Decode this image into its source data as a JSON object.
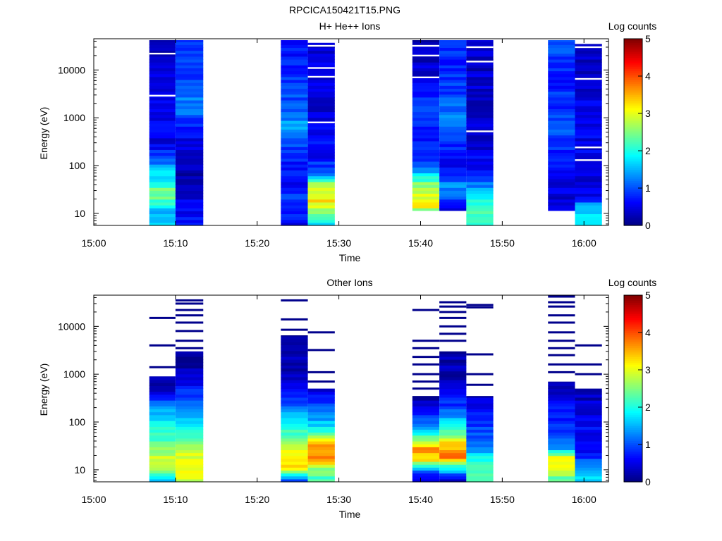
{
  "figure_title": "RPCICA150421T15.PNG",
  "colorbar_label": "Log counts",
  "colorbar_ticks": [
    "0",
    "1",
    "2",
    "3",
    "4",
    "5"
  ],
  "chart_data": [
    {
      "type": "heatmap",
      "title": "H+ He++ Ions",
      "xlabel": "Time",
      "ylabel": "Energy (eV)",
      "xticks": [
        "15:00",
        "15:10",
        "15:20",
        "15:30",
        "15:40",
        "15:50",
        "16:00"
      ],
      "yticks": [
        "10",
        "100",
        "1000",
        "10000"
      ],
      "y_scale": "log",
      "ylim": [
        5.6,
        45000
      ],
      "xlim": [
        "15:00",
        "16:03"
      ],
      "colorbar": {
        "label": "Log counts",
        "range": [
          0,
          5
        ],
        "colormap": "jet"
      },
      "columns": [
        {
          "start": "15:06.8",
          "end": "15:10.0",
          "emin": 5.6,
          "emax": 42000,
          "profile": [
            [
              6,
              1.7
            ],
            [
              11,
              1.3
            ],
            [
              18,
              2.2
            ],
            [
              28,
              2.5
            ],
            [
              45,
              2.0
            ],
            [
              80,
              1.6
            ],
            [
              150,
              1.0
            ],
            [
              300,
              0.5
            ],
            [
              1000,
              0.6
            ],
            [
              4000,
              0.5
            ],
            [
              15000,
              0.4
            ],
            [
              42000,
              0.3
            ]
          ],
          "gaps": [
            2900,
            22000
          ]
        },
        {
          "start": "15:10.0",
          "end": "15:13.4",
          "emin": 5.6,
          "emax": 42000,
          "profile": [
            [
              6,
              0.8
            ],
            [
              11,
              0.6
            ],
            [
              18,
              0.5
            ],
            [
              25,
              0.3
            ],
            [
              40,
              0.3
            ],
            [
              120,
              0.3
            ],
            [
              300,
              0.5
            ],
            [
              1000,
              0.9
            ],
            [
              1500,
              1.4
            ],
            [
              5000,
              0.9
            ],
            [
              42000,
              0.8
            ]
          ],
          "gaps": []
        },
        {
          "start": "15:22.9",
          "end": "15:26.2",
          "emin": 5.6,
          "emax": 42000,
          "profile": [
            [
              6,
              0.5
            ],
            [
              11,
              0.8
            ],
            [
              20,
              1.0
            ],
            [
              40,
              0.6
            ],
            [
              100,
              0.7
            ],
            [
              300,
              1.0
            ],
            [
              700,
              1.4
            ],
            [
              1500,
              1.1
            ],
            [
              5000,
              0.9
            ],
            [
              42000,
              0.7
            ]
          ],
          "gaps": []
        },
        {
          "start": "15:26.2",
          "end": "15:29.5",
          "emin": 5.6,
          "emax": 37000,
          "profile": [
            [
              6,
              1.8
            ],
            [
              11,
              2.6
            ],
            [
              18,
              3.2
            ],
            [
              30,
              3.0
            ],
            [
              45,
              2.6
            ],
            [
              70,
              1.2
            ],
            [
              150,
              0.6
            ],
            [
              500,
              0.6
            ],
            [
              2000,
              0.4
            ],
            [
              8000,
              0.5
            ],
            [
              37000,
              0.3
            ]
          ],
          "gaps": [
            800,
            7200,
            11000,
            32000
          ]
        },
        {
          "start": "15:39.0",
          "end": "15:42.3",
          "emin": 11.5,
          "emax": 42000,
          "profile": [
            [
              11,
              1.6
            ],
            [
              14,
              3.1
            ],
            [
              25,
              3.0
            ],
            [
              40,
              2.6
            ],
            [
              70,
              1.6
            ],
            [
              120,
              1.0
            ],
            [
              400,
              0.6
            ],
            [
              1500,
              1.2
            ],
            [
              3000,
              0.6
            ],
            [
              10000,
              0.4
            ],
            [
              42000,
              0.3
            ]
          ],
          "gaps": [
            7000,
            20000,
            32000
          ]
        },
        {
          "start": "15:42.3",
          "end": "15:45.6",
          "emin": 11.5,
          "emax": 42000,
          "profile": [
            [
              11,
              0.5
            ],
            [
              17,
              0.6
            ],
            [
              25,
              1.4
            ],
            [
              40,
              1.3
            ],
            [
              80,
              0.6
            ],
            [
              400,
              0.8
            ],
            [
              1000,
              1.3
            ],
            [
              3000,
              0.9
            ],
            [
              10000,
              0.8
            ],
            [
              42000,
              0.9
            ]
          ],
          "gaps": []
        },
        {
          "start": "15:45.6",
          "end": "15:48.9",
          "emin": 5.6,
          "emax": 42000,
          "profile": [
            [
              6,
              2.2
            ],
            [
              14,
              2.3
            ],
            [
              25,
              1.6
            ],
            [
              40,
              1.2
            ],
            [
              80,
              0.7
            ],
            [
              300,
              0.4
            ],
            [
              1000,
              0.4
            ],
            [
              5000,
              0.4
            ],
            [
              42000,
              0.3
            ]
          ],
          "gaps": [
            520,
            15000,
            30000
          ]
        },
        {
          "start": "15:55.6",
          "end": "15:58.9",
          "emin": 11.5,
          "emax": 42000,
          "profile": [
            [
              11,
              0.5
            ],
            [
              20,
              0.4
            ],
            [
              50,
              0.5
            ],
            [
              150,
              0.7
            ],
            [
              500,
              1.0
            ],
            [
              1500,
              0.9
            ],
            [
              5000,
              0.8
            ],
            [
              20000,
              0.9
            ],
            [
              42000,
              1.0
            ]
          ],
          "gaps": []
        },
        {
          "start": "15:58.9",
          "end": "16:02.2",
          "emin": 5.6,
          "emax": 35000,
          "profile": [
            [
              6,
              1.7
            ],
            [
              15,
              1.8
            ],
            [
              20,
              0.5
            ],
            [
              60,
              0.4
            ],
            [
              200,
              0.5
            ],
            [
              1000,
              0.6
            ],
            [
              5000,
              0.4
            ],
            [
              35000,
              0.4
            ]
          ],
          "gaps": [
            130,
            240,
            6500,
            30000
          ]
        }
      ]
    },
    {
      "type": "heatmap",
      "title": "Other Ions",
      "xlabel": "Time",
      "ylabel": "Energy (eV)",
      "xticks": [
        "15:00",
        "15:10",
        "15:20",
        "15:30",
        "15:40",
        "15:50",
        "16:00"
      ],
      "yticks": [
        "10",
        "100",
        "1000",
        "10000"
      ],
      "y_scale": "log",
      "ylim": [
        5.6,
        45000
      ],
      "xlim": [
        "15:00",
        "16:03"
      ],
      "colorbar": {
        "label": "Log counts",
        "range": [
          0,
          5
        ],
        "colormap": "jet"
      },
      "columns": [
        {
          "start": "15:06.8",
          "end": "15:10.0",
          "emin": 5.6,
          "emax": 900,
          "profile": [
            [
              6,
              1.7
            ],
            [
              10,
              2.5
            ],
            [
              14,
              2.9
            ],
            [
              20,
              2.8
            ],
            [
              35,
              2.4
            ],
            [
              80,
              2.0
            ],
            [
              200,
              1.3
            ],
            [
              400,
              0.5
            ],
            [
              900,
              0.2
            ]
          ],
          "lines": [
            15000,
            4000,
            1400
          ]
        },
        {
          "start": "15:10.0",
          "end": "15:13.4",
          "emin": 5.6,
          "emax": 3000,
          "profile": [
            [
              6,
              2.8
            ],
            [
              11,
              3.1
            ],
            [
              20,
              3.0
            ],
            [
              40,
              2.5
            ],
            [
              100,
              1.8
            ],
            [
              300,
              1.0
            ],
            [
              1000,
              0.3
            ],
            [
              3000,
              0.2
            ]
          ],
          "lines": [
            35000,
            30000,
            22000,
            17000,
            12000,
            8000,
            5000,
            3500
          ]
        },
        {
          "start": "15:22.9",
          "end": "15:26.2",
          "emin": 5.6,
          "emax": 6500,
          "profile": [
            [
              6,
              0.8
            ],
            [
              11,
              3.3
            ],
            [
              18,
              3.4
            ],
            [
              35,
              2.6
            ],
            [
              100,
              1.9
            ],
            [
              250,
              1.1
            ],
            [
              800,
              0.3
            ],
            [
              3000,
              0.2
            ],
            [
              6500,
              0.2
            ]
          ],
          "lines": [
            35000,
            14000,
            8500
          ]
        },
        {
          "start": "15:26.2",
          "end": "15:29.5",
          "emin": 5.6,
          "emax": 500,
          "profile": [
            [
              6,
              2.2
            ],
            [
              11,
              2.5
            ],
            [
              18,
              3.9
            ],
            [
              35,
              3.5
            ],
            [
              60,
              2.0
            ],
            [
              150,
              1.2
            ],
            [
              300,
              0.8
            ],
            [
              500,
              0.3
            ]
          ],
          "lines": [
            7500,
            3200,
            1100,
            700
          ]
        },
        {
          "start": "15:39.0",
          "end": "15:42.3",
          "emin": 5.6,
          "emax": 350,
          "profile": [
            [
              6,
              0.3
            ],
            [
              10,
              1.3
            ],
            [
              16,
              3.2
            ],
            [
              28,
              3.7
            ],
            [
              50,
              2.2
            ],
            [
              100,
              1.2
            ],
            [
              200,
              0.4
            ],
            [
              350,
              0.2
            ]
          ],
          "lines": [
            22000,
            5000,
            3500,
            2300,
            1600,
            1000,
            700,
            500
          ]
        },
        {
          "start": "15:42.3",
          "end": "15:45.6",
          "emin": 5.6,
          "emax": 3000,
          "profile": [
            [
              6,
              0.5
            ],
            [
              11,
              1.8
            ],
            [
              18,
              3.8
            ],
            [
              35,
              3.4
            ],
            [
              70,
              2.0
            ],
            [
              200,
              1.0
            ],
            [
              600,
              0.3
            ],
            [
              3000,
              0.2
            ]
          ],
          "lines": [
            32000,
            26000,
            20000,
            15000,
            10000,
            7000,
            5000
          ]
        },
        {
          "start": "15:45.6",
          "end": "15:48.9",
          "emin": 5.6,
          "emax": 350,
          "profile": [
            [
              6,
              2.2
            ],
            [
              14,
              2.3
            ],
            [
              25,
              1.5
            ],
            [
              60,
              1.0
            ],
            [
              150,
              0.7
            ],
            [
              350,
              0.3
            ]
          ],
          "lines": [
            28000,
            25000,
            2600,
            1000,
            600
          ]
        },
        {
          "start": "15:55.6",
          "end": "15:58.9",
          "emin": 5.6,
          "emax": 700,
          "profile": [
            [
              6,
              2.2
            ],
            [
              11,
              3.0
            ],
            [
              18,
              3.1
            ],
            [
              30,
              1.2
            ],
            [
              60,
              1.0
            ],
            [
              200,
              0.6
            ],
            [
              700,
              0.2
            ]
          ],
          "lines": [
            42000,
            32000,
            26000,
            17000,
            12000,
            7500,
            5000,
            3500,
            2500,
            1600,
            1100
          ]
        },
        {
          "start": "15:58.9",
          "end": "16:02.2",
          "emin": 5.6,
          "emax": 500,
          "profile": [
            [
              6,
              1.7
            ],
            [
              11,
              1.4
            ],
            [
              20,
              0.7
            ],
            [
              35,
              0.5
            ],
            [
              80,
              0.6
            ],
            [
              200,
              0.4
            ],
            [
              500,
              0.2
            ]
          ],
          "lines": [
            4000,
            1600,
            1000
          ]
        }
      ]
    }
  ]
}
